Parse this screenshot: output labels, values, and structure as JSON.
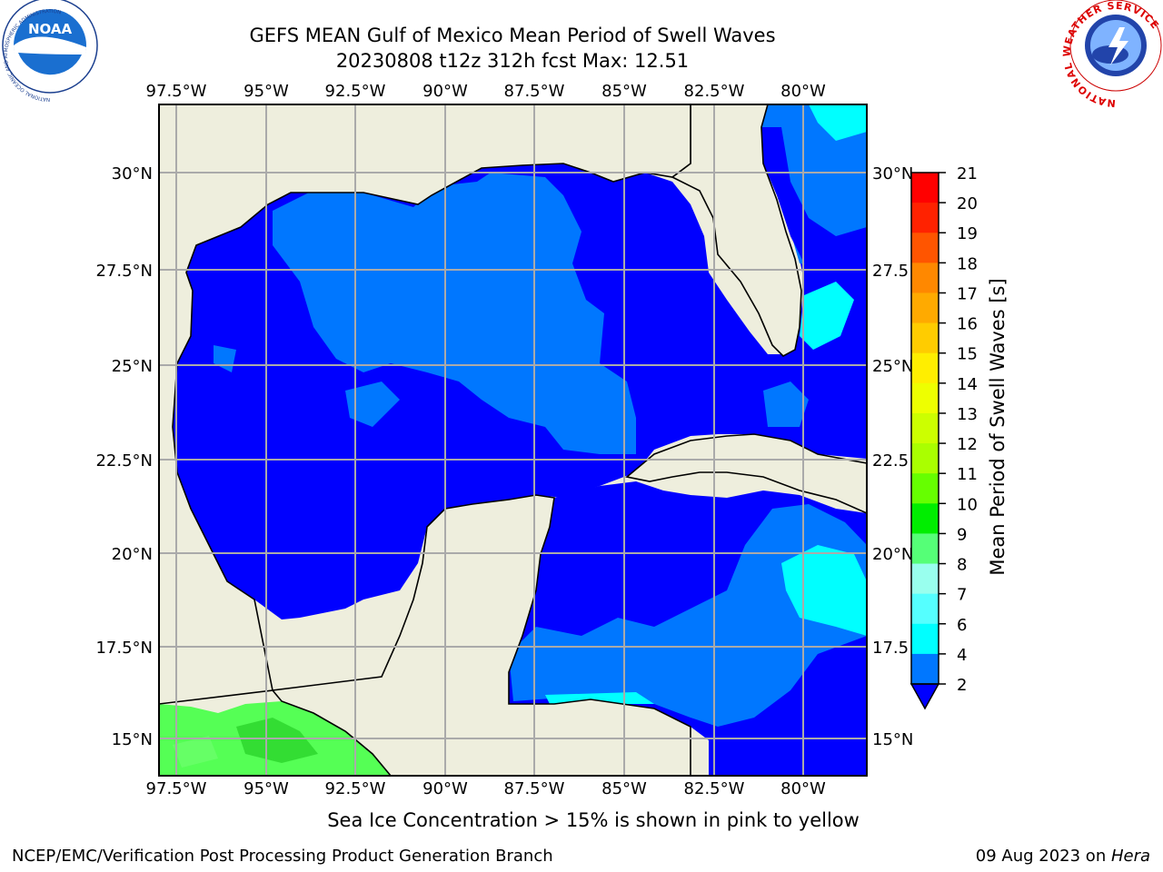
{
  "title": {
    "line1": "GEFS MEAN Gulf of Mexico Mean Period of Swell Waves",
    "line2": "20230808 t12z 312h fcst   Max: 12.51"
  },
  "map": {
    "lon_labels": [
      "97.5°W",
      "95°W",
      "92.5°W",
      "90°W",
      "87.5°W",
      "85°W",
      "82.5°W",
      "80°W"
    ],
    "lat_labels_left": [
      "30°N",
      "27.5°N",
      "25°N",
      "22.5°N",
      "20°N",
      "17.5°N",
      "15°N"
    ],
    "lat_labels_right": [
      "30°N",
      "27.5",
      "25°N",
      "22.5",
      "20°N",
      "17.5",
      "15°N"
    ],
    "colors": {
      "land": "#eeeedd",
      "deep": "#0000ff",
      "mid": "#0077ff",
      "light": "#00ffff",
      "green": "#55ff55"
    }
  },
  "colorbar": {
    "label": "Mean Period of Swell Waves [s]",
    "ticks": [
      "21",
      "20",
      "19",
      "18",
      "17",
      "16",
      "15",
      "14",
      "13",
      "12",
      "11",
      "10",
      "9",
      "8",
      "7",
      "6",
      "4",
      "2"
    ],
    "colors": [
      "#ff0000",
      "#ff2200",
      "#ff5500",
      "#ff8800",
      "#ffaa00",
      "#ffcc00",
      "#ffee00",
      "#eeff00",
      "#ccff00",
      "#aaff00",
      "#66ff00",
      "#00ee00",
      "#55ff77",
      "#99ffee",
      "#55ffff",
      "#00ffff",
      "#0077ff"
    ]
  },
  "note": "Sea Ice Concentration > 15% is shown in pink to yellow",
  "footer": {
    "left": "NCEP/EMC/Verification Post Processing Product Generation Branch",
    "right_prefix": "09 Aug 2023 on ",
    "right_host": "Hera"
  },
  "logos": {
    "noaa_text": "NOAA",
    "noaa_ring": "NATIONAL OCEANIC AND ATMOSPHERIC ADMINISTRATION",
    "nws_ring": "NATIONAL WEATHER SERVICE"
  }
}
